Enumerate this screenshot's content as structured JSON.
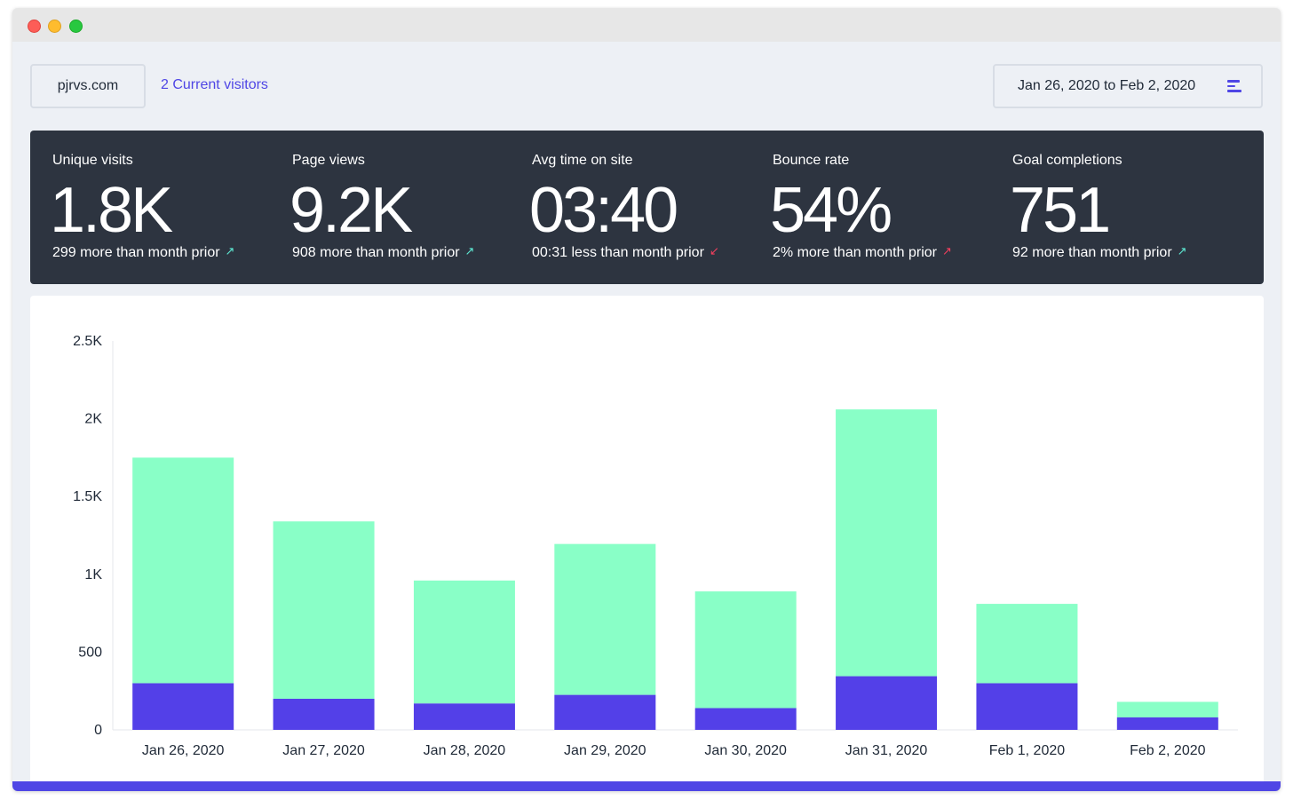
{
  "window": {
    "controls": [
      "close",
      "minimize",
      "maximize"
    ]
  },
  "header": {
    "site": "pjrvs.com",
    "visitors": "2 Current visitors",
    "date_range": "Jan 26, 2020 to Feb 2, 2020",
    "menu_icon": "menu-lines-icon"
  },
  "stats": [
    {
      "title": "Unique visits",
      "value": "1.8K",
      "change": "299 more than month prior",
      "direction": "up",
      "arrow": "↗"
    },
    {
      "title": "Page views",
      "value": "9.2K",
      "change": "908 more than month prior",
      "direction": "up",
      "arrow": "↗"
    },
    {
      "title": "Avg time on site",
      "value": "03:40",
      "change": "00:31 less than month prior",
      "direction": "down",
      "arrow": "↙"
    },
    {
      "title": "Bounce rate",
      "value": "54%",
      "change": "2% more than month prior",
      "direction": "up-bad",
      "arrow": "↗"
    },
    {
      "title": "Goal completions",
      "value": "751",
      "change": "92 more than month prior",
      "direction": "up",
      "arrow": "↗"
    }
  ],
  "colors": {
    "accent": "#4f46e5",
    "stats_bg": "#2d3440",
    "page_bg": "#edf0f5",
    "bar_base": "#5340e8",
    "bar_top": "#89ffc7",
    "arrow_good": "#5eead4",
    "arrow_bad": "#f43f5e"
  },
  "chart_data": {
    "type": "bar",
    "stacked": true,
    "categories": [
      "Jan 26, 2020",
      "Jan 27, 2020",
      "Jan 28, 2020",
      "Jan 29, 2020",
      "Jan 30, 2020",
      "Jan 31, 2020",
      "Feb 1, 2020",
      "Feb 2, 2020"
    ],
    "series": [
      {
        "color": "#5340e8",
        "values": [
          300,
          200,
          170,
          225,
          140,
          345,
          300,
          80
        ]
      },
      {
        "color": "#89ffc7",
        "values": [
          1450,
          1140,
          790,
          970,
          750,
          1715,
          510,
          100
        ]
      }
    ],
    "yticks": [
      0,
      500,
      1000,
      1500,
      2000,
      2500
    ],
    "ytick_labels": [
      "0",
      "500",
      "1K",
      "1.5K",
      "2K",
      "2.5K"
    ],
    "ylim": [
      0,
      2500
    ],
    "grid": false,
    "legend": "none"
  }
}
